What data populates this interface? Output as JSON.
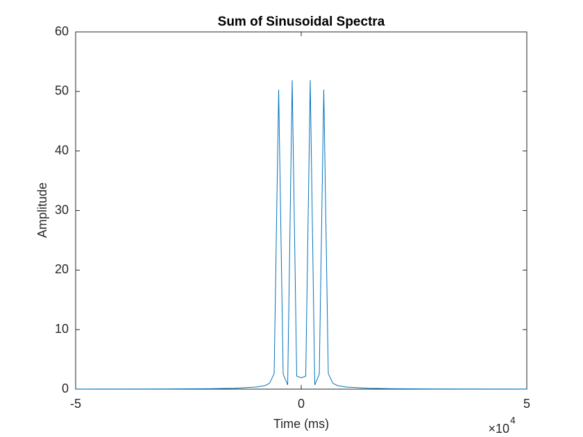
{
  "chart_data": {
    "type": "line",
    "title": "Sum of Sinusoidal Spectra",
    "x_label": "Time (ms)",
    "y_label": "Amplitude",
    "x_multiplier": {
      "base": "×10",
      "exponent": "4"
    },
    "x": [
      -50000,
      -30000,
      -20000,
      -15000,
      -10000,
      -8000,
      -7000,
      -6000,
      -5000,
      -4000,
      -3000,
      -2000,
      -1000,
      0,
      1000,
      2000,
      3000,
      4000,
      5000,
      6000,
      7000,
      8000,
      10000,
      15000,
      20000,
      30000,
      50000
    ],
    "series": [
      {
        "color": "#0072bd",
        "values": [
          0.01,
          0.03,
          0.08,
          0.15,
          0.35,
          0.6,
          1.0,
          2.6,
          50.3,
          2.5,
          0.7,
          51.9,
          2.2,
          1.9,
          2.2,
          51.9,
          0.7,
          2.5,
          50.3,
          2.6,
          1.0,
          0.6,
          0.35,
          0.15,
          0.08,
          0.03,
          0.01
        ]
      }
    ],
    "xlim": [
      -50000,
      50000
    ],
    "xticks": [
      {
        "value": -50000,
        "label": "-5"
      },
      {
        "value": 0,
        "label": "0"
      },
      {
        "value": 50000,
        "label": "5"
      }
    ],
    "ylim": [
      0,
      60
    ],
    "yticks": [
      0,
      10,
      20,
      30,
      40,
      50,
      60
    ],
    "grid": false
  }
}
